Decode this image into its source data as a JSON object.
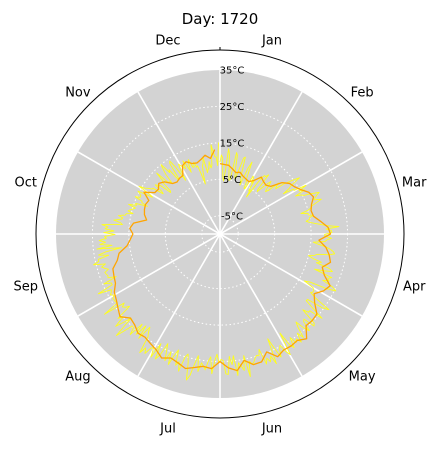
{
  "chart_data": {
    "type": "line",
    "projection": "polar",
    "title": "Day: 1720",
    "angular_ticks": [
      "Jan",
      "Feb",
      "Mar",
      "Apr",
      "May",
      "Jun",
      "Jul",
      "Aug",
      "Sep",
      "Oct",
      "Nov",
      "Dec"
    ],
    "radial_ticks": [
      "-5°C",
      "5°C",
      "15°C",
      "25°C",
      "35°C"
    ],
    "radial_tick_values": [
      -5,
      5,
      15,
      25,
      35
    ],
    "rlim": [
      -10,
      35
    ],
    "grid": true,
    "background_color": "#d3d3d3",
    "series": [
      {
        "color": "#ffff1a",
        "style": "daily temperatures, 1 day resolution",
        "values": [
          9.7,
          11.7,
          11.0,
          5.5,
          4.6,
          7.3,
          13.5,
          12.1,
          9.0,
          6.2,
          4.9,
          5.2,
          12.8,
          12.1,
          8.3,
          6.5,
          5.6,
          8.1,
          11.8,
          12.2,
          9.0,
          6.2,
          5.8,
          4.5,
          9.6,
          11.6,
          8.4,
          6.4,
          6.0,
          4.1,
          4.2,
          8.3,
          8.0,
          6.4,
          7.5,
          4.2,
          4.8,
          2.5,
          9.2,
          10.2,
          10.1,
          11.0,
          6.0,
          5.5,
          7.2,
          8.8,
          10.1,
          9.0,
          7.7,
          7.1,
          7.9,
          11.3,
          10.2,
          9.7,
          12.2,
          13.6,
          15.3,
          16.7,
          13.7,
          12.7,
          10.6,
          13.6,
          13.6,
          17.1,
          14.7,
          16.2,
          13.2,
          14.7,
          15.3,
          17.5,
          19.5,
          18.6,
          17.9,
          17.5,
          19.4,
          17.8,
          16.4,
          16.0,
          15.1,
          12.9,
          14.8,
          14.8,
          16.1,
          15.0,
          14.9,
          13.9,
          14.7,
          16.1,
          17.6,
          19.2,
          22.7,
          19.1,
          20.6,
          20.7,
          18.7,
          18.8,
          20.6,
          19.4,
          18.9,
          15.7,
          17.2,
          19.3,
          20.6,
          21.5,
          21.9,
          20.4,
          17.3,
          16.6,
          15.0,
          16.2,
          18.9,
          17.6,
          21.5,
          22.5,
          20.4,
          17.7,
          22.9,
          22.0,
          22.5,
          20.9,
          24.1,
          25.4,
          23.0,
          18.1,
          16.5,
          19.5,
          20.0,
          20.1,
          19.6,
          21.6,
          26.4,
          24.8,
          20.0,
          19.9,
          22.6,
          26.3,
          22.4,
          22.4,
          20.8,
          25.6,
          26.1,
          22.8,
          23.2,
          26.1,
          24.6,
          21.9,
          23.5,
          26.5,
          24.5,
          27.1,
          25.6,
          26.4,
          24.3,
          27.2,
          26.0,
          21.8,
          28.3,
          27.0,
          24.7,
          25.6,
          27.7,
          24.8,
          21.6,
          28.8,
          26.3,
          27.7,
          26.4,
          27.9,
          23.4,
          25.1,
          24.8,
          25.3,
          26.3,
          26.8,
          25.8,
          30.0,
          24.0,
          28.0,
          26.7,
          25.7,
          29.1,
          23.6,
          26.0,
          23.7,
          28.6,
          28.4,
          24.8,
          24.4,
          25.3,
          23.0,
          24.9,
          28.4,
          23.8,
          25.1,
          27.5,
          26.5,
          25.7,
          28.2,
          23.9,
          26.3,
          29.7,
          31.1,
          26.3,
          24.1,
          25.1,
          29.3,
          26.8,
          28.0,
          23.8,
          25.6,
          28.5,
          25.0,
          27.9,
          25.5,
          23.3,
          27.1,
          28.6,
          24.2,
          28.7,
          26.2,
          26.5,
          28.7,
          27.3,
          29.3,
          24.4,
          23.4,
          22.0,
          26.3,
          22.4,
          25.9,
          22.7,
          27.0,
          25.0,
          24.9,
          27.3,
          29.8,
          23.6,
          25.9,
          28.2,
          25.0,
          26.3,
          21.8,
          22.9,
          23.4,
          22.4,
          28.6,
          23.9,
          24.2,
          24.2,
          24.3,
          23.6,
          24.4,
          23.8,
          23.5,
          27.2,
          22.7,
          22.7,
          24.7,
          20.8,
          23.0,
          22.8,
          23.1,
          23.3,
          22.1,
          23.0,
          23.7,
          22.5,
          25.7,
          24.1,
          24.1,
          21.1,
          23.8,
          21.7,
          17.3,
          24.0,
          19.8,
          23.1,
          21.5,
          23.2,
          21.2,
          21.7,
          18.8,
          21.9,
          19.1,
          21.6,
          20.8,
          22.5,
          16.9,
          17.5,
          19.4,
          17.5,
          17.0,
          18.3,
          16.5,
          16.3,
          14.5,
          16.0,
          15.5,
          14.8,
          14.3,
          16.4,
          14.2,
          14.6,
          11.3,
          13.1,
          13.2,
          15.4,
          14.1,
          14.1,
          14.6,
          15.4,
          11.1,
          12.2,
          15.8,
          14.1,
          13.4,
          12.4,
          12.3,
          9.1,
          9.8,
          12.3,
          11.6,
          11.1,
          7.7,
          8.1,
          11.0,
          11.6,
          14.1,
          10.0,
          10.0,
          9.3,
          12.2,
          13.7,
          15.0,
          11.8,
          12.5,
          8.6,
          9.4,
          13.7,
          14.3,
          12.0,
          7.5,
          10.3,
          12.3,
          11.5,
          11.1,
          10.3,
          12.5,
          11.1,
          8.7,
          11.3,
          12.2,
          9.8,
          9.7,
          11.0,
          9.4,
          9.7,
          7.0,
          4.3,
          7.4,
          9.3,
          10.0,
          11.6,
          7.2,
          7.9,
          8.3,
          10.1,
          8.3,
          9.0,
          14.6,
          12.6,
          11.2,
          11.2,
          8.8,
          15.1
        ]
      },
      {
        "color": "#ffa500",
        "style": "smoothed trend, 5-day resolution",
        "values": [
          9.3,
          9.1,
          9.0,
          8.2,
          7.4,
          7.8,
          7.1,
          6.7,
          6.4,
          7.4,
          9.3,
          8.7,
          8.4,
          9.1,
          12.1,
          13.6,
          14.2,
          15.3,
          16.9,
          17.6,
          16.4,
          15.8,
          16.1,
          17.8,
          19.7,
          20.3,
          17.2,
          19.3,
          20.5,
          21.3,
          19.5,
          20.8,
          23.4,
          22.4,
          20.6,
          22.1,
          24.5,
          24.7,
          24.5,
          27.3,
          26.1,
          26.4,
          26.3,
          27.2,
          24.8,
          26.9,
          27.0,
          25.3,
          27.8,
          26.8,
          25.0,
          27.0,
          26.6,
          27.3,
          28.1,
          27.2,
          26.6,
          27.6,
          26.3,
          25.6,
          25.0,
          25.3,
          24.2,
          23.7,
          25.6,
          24.6,
          23.7,
          23.1,
          21.7,
          21.3,
          20.9,
          19.1,
          18.2,
          15.7,
          14.7,
          13.9,
          14.8,
          13.9,
          10.5,
          11.4,
          11.8,
          12.0,
          11.6,
          13.8,
          11.2,
          10.9,
          11.8,
          10.9,
          9.0,
          8.5,
          8.9,
          9.0,
          11.4,
          11.9,
          10.8,
          10.5,
          11.1,
          12.0,
          10.9,
          13.2
        ]
      }
    ]
  }
}
